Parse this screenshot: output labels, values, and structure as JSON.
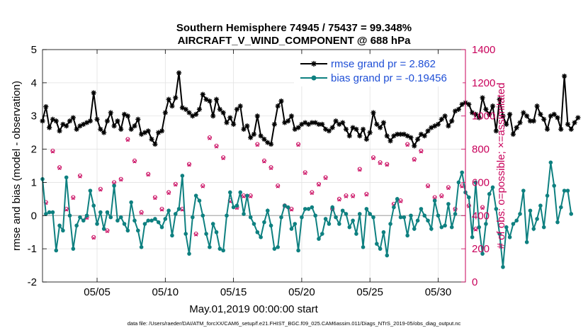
{
  "chart_data": {
    "type": "line",
    "title_line1": "Southern Hemisphere 74945 / 75437 = 99.348%",
    "title_line2": "AIRCRAFT_V_WIND_COMPONENT @ 688 hPa",
    "xlabel": "May.01,2019 00:00:00 start",
    "ylabel": "rmse and bias (model - observation)",
    "ylabel_right": "# of obs: o=possible; ×=assimilated",
    "ylim": [
      -2,
      5
    ],
    "ylim_right": [
      0,
      1400
    ],
    "xlim": [
      1.0,
      32.0
    ],
    "yticks": [
      "-2",
      "-1",
      "0",
      "1",
      "2",
      "3",
      "4",
      "5"
    ],
    "yticks_right": [
      "0",
      "200",
      "400",
      "600",
      "800",
      "1000",
      "1200",
      "1400"
    ],
    "xtick_positions": [
      5,
      10,
      15,
      20,
      25,
      30
    ],
    "xtick_labels": [
      "05/05",
      "05/10",
      "05/15",
      "05/20",
      "05/25",
      "05/30"
    ],
    "legend": [
      {
        "label": "rmse grand pr = 2.862",
        "color": "#000000"
      },
      {
        "label": "bias grand pr = -0.19456",
        "color": "#0e8080"
      }
    ],
    "footnote": "data file: /Users/raeder/DAI/ATM_forcXX/CAM6_setup/f.e21.FHIST_BGC.f09_025.CAM6assim.011/Diags_NTrS_2019-05/obs_diag_output.nc",
    "series": [
      {
        "name": "rmse",
        "x_start": 1.0,
        "x_step": 0.25,
        "values": [
          2.85,
          3.28,
          2.65,
          2.9,
          2.85,
          2.55,
          2.75,
          2.7,
          2.85,
          2.95,
          2.6,
          2.7,
          2.75,
          2.8,
          2.85,
          3.7,
          2.9,
          2.6,
          2.5,
          2.85,
          3.1,
          2.7,
          2.85,
          2.6,
          3.05,
          3.0,
          2.6,
          2.7,
          2.9,
          2.45,
          2.5,
          2.55,
          2.3,
          2.15,
          2.5,
          2.55,
          3.1,
          3.5,
          3.3,
          3.55,
          4.3,
          3.25,
          3.2,
          3.1,
          3.0,
          3.05,
          3.2,
          3.65,
          3.5,
          3.45,
          3.0,
          3.5,
          3.2,
          3.1,
          2.8,
          2.95,
          2.75,
          3.2,
          3.3,
          2.6,
          2.7,
          2.35,
          2.45,
          3.0,
          2.4,
          2.3,
          2.2,
          2.15,
          2.75,
          3.3,
          3.45,
          2.8,
          2.85,
          3.0,
          2.6,
          2.65,
          2.75,
          2.8,
          2.75,
          2.8,
          2.8,
          2.75,
          2.75,
          2.6,
          2.55,
          2.65,
          2.85,
          2.75,
          2.8,
          2.6,
          2.4,
          2.65,
          2.6,
          2.4,
          2.6,
          2.3,
          2.5,
          3.1,
          2.75,
          2.65,
          2.8,
          2.4,
          2.25,
          2.4,
          2.45,
          2.45,
          2.45,
          2.4,
          2.35,
          2.1,
          2.3,
          2.45,
          2.4,
          2.55,
          2.65,
          2.7,
          2.75,
          2.9,
          3.0,
          2.7,
          2.85,
          3.15,
          3.2,
          3.35,
          3.4,
          3.35,
          3.1,
          3.05,
          2.95,
          3.55,
          3.2,
          3.05,
          3.3,
          2.55,
          3.5,
          3.0,
          2.75,
          3.05,
          2.45,
          2.65,
          2.8,
          3.1,
          3.0,
          2.85,
          2.85,
          3.3,
          3.05,
          2.9,
          2.6,
          3.0,
          3.05,
          2.95,
          2.6,
          4.2,
          2.75,
          2.6,
          2.8,
          2.95
        ]
      },
      {
        "name": "bias",
        "x_start": 1.0,
        "x_step": 0.25,
        "values": [
          1.1,
          0.05,
          0.1,
          0.1,
          -1.05,
          -0.3,
          -0.45,
          1.15,
          0.0,
          -1.0,
          -0.3,
          -0.05,
          -0.15,
          0.0,
          0.75,
          0.3,
          -0.25,
          0.1,
          -0.4,
          0.1,
          -0.05,
          0.9,
          -0.15,
          -0.05,
          -0.25,
          -0.45,
          0.4,
          -0.15,
          -0.45,
          -0.95,
          -0.25,
          -0.15,
          -0.15,
          -0.1,
          -0.2,
          -0.35,
          -0.1,
          0.15,
          -0.6,
          0.05,
          0.2,
          1.2,
          -0.55,
          -1.15,
          -0.05,
          0.6,
          0.45,
          0.0,
          -0.55,
          -0.95,
          -0.25,
          -0.5,
          -1.0,
          -1.05,
          0.0,
          0.7,
          0.25,
          0.3,
          0.7,
          0.05,
          0.6,
          -0.05,
          -0.25,
          -0.5,
          -0.65,
          -0.2,
          0.15,
          -0.3,
          -1.0,
          -0.95,
          -0.05,
          0.3,
          0.25,
          -0.4,
          -0.25,
          -1.05,
          -0.05,
          0.2,
          0.2,
          0.25,
          0.0,
          -0.7,
          -0.55,
          -0.1,
          -0.25,
          0.25,
          -0.05,
          -0.25,
          0.15,
          0.05,
          -0.35,
          -0.15,
          -0.55,
          0.05,
          -0.95,
          0.2,
          0.05,
          -0.05,
          -0.85,
          -1.0,
          -0.5,
          -1.2,
          -0.25,
          0.25,
          0.5,
          -0.05,
          -0.05,
          -0.6,
          0.0,
          -0.4,
          -0.15,
          0.2,
          0.0,
          -0.15,
          -0.4,
          0.45,
          0.0,
          -0.35,
          -0.3,
          0.35,
          -0.35,
          0.05,
          1.0,
          1.3,
          0.7,
          0.55,
          -0.65,
          1.0,
          -0.35,
          -1.15,
          -0.25,
          0.65,
          0.85,
          0.2,
          -0.55,
          -1.55,
          -0.35,
          -0.65,
          -0.25,
          -0.15,
          0.05,
          0.75,
          -0.8,
          0.15,
          -0.4,
          -0.1,
          0.3,
          -0.35,
          0.6,
          1.6,
          0.9,
          -0.2,
          0.25,
          0.75,
          0.75,
          0.05
        ]
      },
      {
        "name": "obs_possible",
        "axis": "right",
        "x_start": 1.25,
        "x_step": 0.5,
        "values": [
          480,
          790,
          690,
          440,
          510,
          640,
          390,
          270,
          560,
          310,
          600,
          620,
          860,
          730,
          420,
          650,
          510,
          440,
          540,
          590,
          440,
          710,
          290,
          580,
          870,
          820,
          750,
          490,
          450,
          520,
          520,
          830,
          730,
          690,
          580,
          460,
          440,
          830,
          660,
          540,
          590,
          630,
          440,
          500,
          520,
          520,
          680,
          530,
          750,
          720,
          710,
          470,
          490,
          830,
          740,
          790,
          580,
          510,
          520,
          570,
          440,
          580,
          460,
          320,
          450
        ]
      },
      {
        "name": "obs_assimilated",
        "axis": "right",
        "x_start": 1.25,
        "x_step": 0.5,
        "values": [
          475,
          785,
          685,
          435,
          505,
          635,
          385,
          265,
          555,
          305,
          595,
          615,
          855,
          725,
          415,
          645,
          505,
          435,
          535,
          585,
          435,
          705,
          285,
          575,
          865,
          815,
          745,
          485,
          445,
          515,
          515,
          825,
          725,
          685,
          575,
          455,
          435,
          825,
          655,
          535,
          585,
          625,
          435,
          495,
          515,
          515,
          675,
          525,
          745,
          715,
          705,
          465,
          485,
          825,
          735,
          785,
          575,
          505,
          515,
          565,
          435,
          575,
          455,
          315,
          445
        ]
      }
    ]
  }
}
